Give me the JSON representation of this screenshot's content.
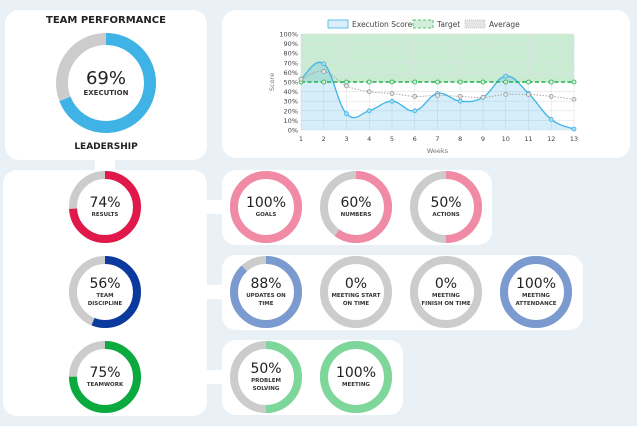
{
  "header": {
    "title": "TEAM PERFORMANCE",
    "subtitle": "LEADERSHIP"
  },
  "main_gauge": {
    "value": 69,
    "pct": "69%",
    "label": "EXECUTION",
    "color": "#3fb3e6"
  },
  "categories": [
    {
      "pct": "74%",
      "value": 74,
      "label": "RESULTS",
      "color": "#e0194a",
      "items": [
        {
          "pct": "100%",
          "value": 100,
          "label": "GOALS",
          "color": "#f08aa5"
        },
        {
          "pct": "60%",
          "value": 60,
          "label": "NUMBERS",
          "color": "#f08aa5"
        },
        {
          "pct": "50%",
          "value": 50,
          "label": "ACTIONS",
          "color": "#f08aa5"
        }
      ]
    },
    {
      "pct": "56%",
      "value": 56,
      "label": "TEAM DISCIPLINE",
      "color": "#0a3a9e",
      "items": [
        {
          "pct": "88%",
          "value": 88,
          "label": "UPDATES ON TIME",
          "color": "#7b9bd0"
        },
        {
          "pct": "0%",
          "value": 0,
          "label": "MEETING START ON TIME",
          "color": "#7b9bd0"
        },
        {
          "pct": "0%",
          "value": 0,
          "label": "MEETING FINISH ON TIME",
          "color": "#7b9bd0"
        },
        {
          "pct": "100%",
          "value": 100,
          "label": "MEETING ATTENDANCE",
          "color": "#7b9bd0"
        }
      ]
    },
    {
      "pct": "75%",
      "value": 75,
      "label": "TEAMWORK",
      "color": "#0aaa3e",
      "items": [
        {
          "pct": "50%",
          "value": 50,
          "label": "PROBLEM SOLVING",
          "color": "#7dd69a"
        },
        {
          "pct": "100%",
          "value": 100,
          "label": "MEETING",
          "color": "#7dd69a"
        }
      ]
    }
  ],
  "chart_data": {
    "type": "line",
    "xlabel": "Weeks",
    "ylabel": "Score",
    "x": [
      1,
      2,
      3,
      4,
      5,
      6,
      7,
      8,
      9,
      10,
      11,
      12,
      13
    ],
    "ylim": [
      0,
      100
    ],
    "yticks": [
      "0%",
      "10%",
      "20%",
      "30%",
      "40%",
      "50%",
      "60%",
      "70%",
      "80%",
      "90%",
      "100%"
    ],
    "grid": true,
    "legend": "top",
    "series": [
      {
        "name": "Execution Score",
        "values": [
          53,
          69,
          17,
          20,
          30,
          20,
          38,
          30,
          34,
          56,
          38,
          11,
          1
        ],
        "color": "#3fb3e6"
      },
      {
        "name": "Target",
        "values": [
          50,
          50,
          50,
          50,
          50,
          50,
          50,
          50,
          50,
          50,
          50,
          50,
          50
        ],
        "color": "#22b04a"
      },
      {
        "name": "Average",
        "values": [
          53,
          61,
          46,
          40,
          38,
          35,
          36,
          35,
          34,
          37,
          37,
          35,
          32
        ],
        "color": "#999999"
      }
    ]
  }
}
